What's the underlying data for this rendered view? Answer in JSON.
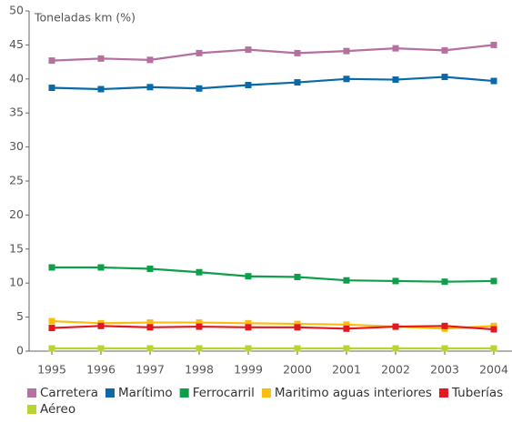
{
  "chart_data": {
    "type": "line",
    "y_label": "Toneladas km (%)",
    "categories": [
      "1995",
      "1996",
      "1997",
      "1998",
      "1999",
      "2000",
      "2001",
      "2002",
      "2003",
      "2004"
    ],
    "series": [
      {
        "name": "Carretera",
        "color": "#b5709f",
        "values": [
          42.7,
          43.0,
          42.8,
          43.8,
          44.3,
          43.8,
          44.1,
          44.5,
          44.2,
          45.0
        ]
      },
      {
        "name": "Marítimo",
        "color": "#0a6aa8",
        "values": [
          38.7,
          38.5,
          38.8,
          38.6,
          39.1,
          39.5,
          40.0,
          39.9,
          40.3,
          39.7
        ]
      },
      {
        "name": "Ferrocarril",
        "color": "#0e9f4a",
        "values": [
          12.3,
          12.3,
          12.1,
          11.6,
          11.0,
          10.9,
          10.4,
          10.3,
          10.2,
          10.3
        ]
      },
      {
        "name": "Maritimo aguas interiores",
        "color": "#f7be0f",
        "values": [
          4.4,
          4.1,
          4.2,
          4.2,
          4.1,
          4.0,
          3.9,
          3.6,
          3.3,
          3.7
        ]
      },
      {
        "name": "Tuberías",
        "color": "#e2171f",
        "values": [
          3.4,
          3.7,
          3.5,
          3.6,
          3.5,
          3.5,
          3.3,
          3.6,
          3.7,
          3.2
        ]
      },
      {
        "name": "Aéreo",
        "color": "#b8d432",
        "values": [
          0.4,
          0.4,
          0.4,
          0.4,
          0.4,
          0.4,
          0.4,
          0.4,
          0.4,
          0.4
        ]
      }
    ],
    "ylim": [
      0,
      50
    ],
    "yticks": [
      0,
      5,
      10,
      15,
      20,
      25,
      30,
      35,
      40,
      45,
      50
    ],
    "grid": false
  }
}
